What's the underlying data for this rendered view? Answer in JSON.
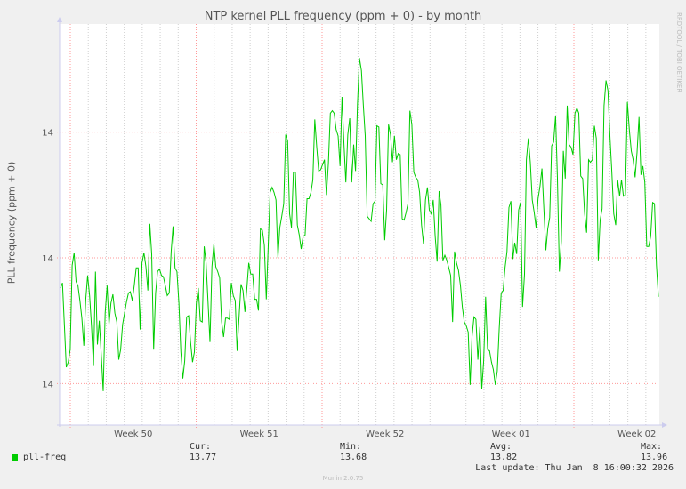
{
  "chart_data": {
    "type": "line",
    "title": "NTP kernel PLL frequency (ppm + 0) - by month",
    "ylabel": "PLL frequency (ppm + 0)",
    "xlabel": "",
    "x_ticks": [
      "Week 50",
      "Week 51",
      "Week 52",
      "Week 01",
      "Week 02"
    ],
    "y_ticks": [
      {
        "value": 13.7,
        "label": "14"
      },
      {
        "value": 13.8,
        "label": "14"
      },
      {
        "value": 13.9,
        "label": "14"
      }
    ],
    "ylim": [
      13.667,
      13.986
    ],
    "grid": true,
    "series": [
      {
        "name": "pll-freq",
        "color": "#00cc00",
        "values": [
          13.776,
          13.78,
          13.746,
          13.713,
          13.717,
          13.727,
          13.794,
          13.804,
          13.781,
          13.778,
          13.766,
          13.752,
          13.73,
          13.767,
          13.786,
          13.77,
          13.745,
          13.714,
          13.789,
          13.731,
          13.75,
          13.723,
          13.694,
          13.756,
          13.778,
          13.747,
          13.764,
          13.771,
          13.756,
          13.749,
          13.719,
          13.727,
          13.747,
          13.756,
          13.765,
          13.772,
          13.773,
          13.766,
          13.778,
          13.792,
          13.792,
          13.743,
          13.796,
          13.804,
          13.793,
          13.774,
          13.827,
          13.803,
          13.727,
          13.772,
          13.789,
          13.791,
          13.786,
          13.785,
          13.778,
          13.77,
          13.772,
          13.805,
          13.825,
          13.792,
          13.789,
          13.764,
          13.725,
          13.704,
          13.718,
          13.753,
          13.754,
          13.733,
          13.717,
          13.725,
          13.764,
          13.776,
          13.75,
          13.749,
          13.809,
          13.796,
          13.765,
          13.733,
          13.793,
          13.811,
          13.793,
          13.789,
          13.784,
          13.749,
          13.737,
          13.752,
          13.752,
          13.751,
          13.78,
          13.77,
          13.766,
          13.726,
          13.753,
          13.779,
          13.774,
          13.757,
          13.776,
          13.796,
          13.787,
          13.787,
          13.767,
          13.767,
          13.758,
          13.823,
          13.822,
          13.81,
          13.767,
          13.81,
          13.852,
          13.856,
          13.852,
          13.846,
          13.8,
          13.824,
          13.833,
          13.843,
          13.898,
          13.893,
          13.835,
          13.824,
          13.868,
          13.868,
          13.826,
          13.818,
          13.807,
          13.817,
          13.818,
          13.847,
          13.847,
          13.852,
          13.862,
          13.91,
          13.888,
          13.869,
          13.87,
          13.874,
          13.878,
          13.85,
          13.875,
          13.915,
          13.917,
          13.915,
          13.902,
          13.897,
          13.873,
          13.928,
          13.892,
          13.86,
          13.898,
          13.911,
          13.86,
          13.89,
          13.869,
          13.922,
          13.959,
          13.949,
          13.921,
          13.897,
          13.833,
          13.831,
          13.829,
          13.843,
          13.845,
          13.905,
          13.904,
          13.859,
          13.858,
          13.814,
          13.838,
          13.906,
          13.898,
          13.876,
          13.897,
          13.878,
          13.883,
          13.882,
          13.831,
          13.83,
          13.836,
          13.843,
          13.917,
          13.906,
          13.868,
          13.864,
          13.862,
          13.852,
          13.826,
          13.811,
          13.846,
          13.856,
          13.838,
          13.835,
          13.846,
          13.817,
          13.797,
          13.853,
          13.842,
          13.798,
          13.802,
          13.798,
          13.792,
          13.786,
          13.749,
          13.805,
          13.796,
          13.79,
          13.778,
          13.761,
          13.749,
          13.746,
          13.741,
          13.699,
          13.737,
          13.753,
          13.751,
          13.719,
          13.745,
          13.696,
          13.718,
          13.769,
          13.727,
          13.726,
          13.717,
          13.711,
          13.699,
          13.71,
          13.744,
          13.772,
          13.774,
          13.792,
          13.805,
          13.84,
          13.845,
          13.799,
          13.812,
          13.803,
          13.838,
          13.844,
          13.761,
          13.787,
          13.878,
          13.895,
          13.876,
          13.846,
          13.836,
          13.824,
          13.847,
          13.857,
          13.871,
          13.838,
          13.806,
          13.823,
          13.832,
          13.889,
          13.892,
          13.913,
          13.863,
          13.789,
          13.813,
          13.885,
          13.863,
          13.921,
          13.89,
          13.888,
          13.882,
          13.915,
          13.919,
          13.915,
          13.865,
          13.863,
          13.835,
          13.82,
          13.878,
          13.876,
          13.878,
          13.905,
          13.895,
          13.798,
          13.83,
          13.839,
          13.921,
          13.941,
          13.933,
          13.897,
          13.869,
          13.835,
          13.826,
          13.862,
          13.849,
          13.862,
          13.849,
          13.85,
          13.924,
          13.902,
          13.885,
          13.878,
          13.864,
          13.884,
          13.912,
          13.866,
          13.873,
          13.86,
          13.809,
          13.809,
          13.817,
          13.844,
          13.843,
          13.794,
          13.769
        ]
      }
    ]
  },
  "legend": {
    "series_name": "pll-freq",
    "cur_label": "Cur:",
    "cur_value": "13.77",
    "min_label": "Min:",
    "min_value": "13.68",
    "avg_label": "Avg:",
    "avg_value": "13.82",
    "max_label": "Max:",
    "max_value": "13.96",
    "last_update": "Last update: Thu Jan  8 16:00:32 2026"
  },
  "watermark": "RRDTOOL / TOBI OETIKER",
  "footer": "Munin 2.0.75"
}
